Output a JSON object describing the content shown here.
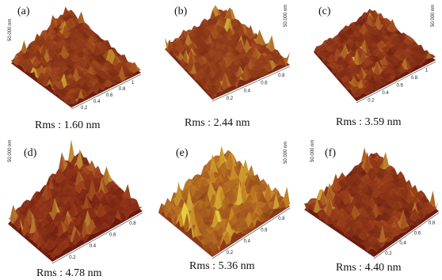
{
  "figure": {
    "panels": [
      {
        "label": "(a)",
        "rms": "Rms : 1.60 nm",
        "z_label": "50.000 nm",
        "ticks": [
          "0.2",
          "0.4",
          "0.6",
          "0.8",
          "1"
        ],
        "colors": {
          "base": "#6e1e10",
          "mid": "#a54d1e",
          "peak": "#d9c63a"
        }
      },
      {
        "label": "(b)",
        "rms": "Rms : 2.44 nm",
        "z_label": "50.000 nm",
        "ticks": [
          "0.2",
          "0.4",
          "0.6",
          "0.8"
        ],
        "colors": {
          "base": "#7a2a14",
          "mid": "#a24a1e",
          "peak": "#d8c03a"
        }
      },
      {
        "label": "(c)",
        "rms": "Rms : 3.59 nm",
        "z_label": "50.000 nm",
        "ticks": [
          "0.2",
          "0.4",
          "0.6",
          "0.8",
          "1"
        ],
        "colors": {
          "base": "#6a1c10",
          "mid": "#9e421c",
          "peak": "#d4bd36"
        }
      },
      {
        "label": "(d)",
        "rms": "Rms : 4.78 nm",
        "z_label": "50.000 nm",
        "ticks": [
          "0.2",
          "0.4",
          "0.6",
          "0.8"
        ],
        "colors": {
          "base": "#6a1a10",
          "mid": "#9a3c1a",
          "peak": "#d9c445"
        }
      },
      {
        "label": "(e)",
        "rms": "Rms : 5.36 nm",
        "z_label": "50.000 nm",
        "ticks": [
          "0.2",
          "0.4",
          "0.6",
          "0.8"
        ],
        "colors": {
          "base": "#8a3a18",
          "mid": "#c07a24",
          "peak": "#e3d040"
        }
      },
      {
        "label": "(f)",
        "rms": "Rms : 4.40 nm",
        "z_label": "50.000 nm",
        "ticks": [
          "0.2",
          "0.4",
          "0.6",
          "0.8"
        ],
        "colors": {
          "base": "#6a1c10",
          "mid": "#a0441c",
          "peak": "#d6bf3c"
        }
      }
    ]
  }
}
